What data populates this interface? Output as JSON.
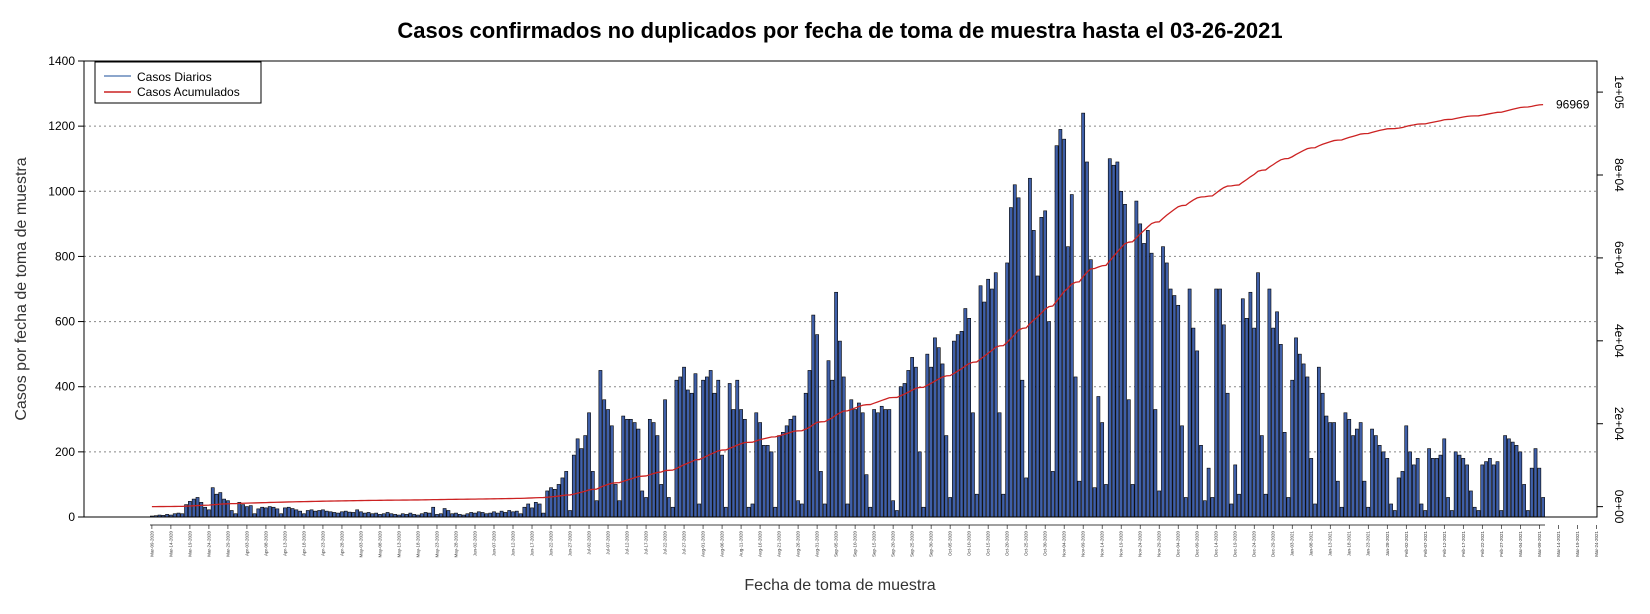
{
  "chart_data": {
    "type": "bar",
    "title": "Casos confirmados no duplicados por fecha de toma de muestra hasta el 03-26-2021",
    "xlabel": "Fecha de toma de muestra",
    "ylabel": "Casos por fecha de toma de muestra",
    "ylim": [
      0,
      1400
    ],
    "y_ticks": [
      "0",
      "200",
      "400",
      "600",
      "800",
      "1000",
      "1200",
      "1400"
    ],
    "y2lim": [
      -2500,
      107500
    ],
    "y2_ticks": [
      "0e+00",
      "2e+04",
      "4e+04",
      "6e+04",
      "8e+04",
      "1e+05"
    ],
    "grid": "horizontal-dotted",
    "legend_position": "top-left",
    "end_label": "96969",
    "series": [
      {
        "name": "Casos Diarios",
        "kind": "bar",
        "color": "#6688bb",
        "fill": "#3f5fa8",
        "start_date": "2020-03-09",
        "values": [
          3,
          4,
          6,
          5,
          8,
          6,
          10,
          12,
          10,
          38,
          48,
          55,
          60,
          45,
          30,
          22,
          90,
          70,
          75,
          55,
          50,
          20,
          10,
          45,
          38,
          32,
          35,
          10,
          25,
          30,
          28,
          32,
          30,
          25,
          10,
          28,
          30,
          26,
          22,
          18,
          10,
          20,
          22,
          18,
          20,
          22,
          18,
          16,
          14,
          12,
          16,
          18,
          15,
          14,
          22,
          16,
          12,
          14,
          10,
          12,
          8,
          10,
          14,
          10,
          8,
          6,
          10,
          8,
          12,
          8,
          6,
          10,
          14,
          12,
          30,
          8,
          10,
          26,
          20,
          10,
          12,
          8,
          6,
          10,
          14,
          12,
          16,
          14,
          10,
          12,
          16,
          12,
          18,
          14,
          20,
          16,
          18,
          10,
          30,
          40,
          28,
          45,
          40,
          12,
          80,
          90,
          85,
          100,
          120,
          140,
          20,
          190,
          240,
          210,
          250,
          320,
          140,
          50,
          450,
          360,
          330,
          280,
          100,
          50,
          310,
          300,
          300,
          290,
          270,
          80,
          60,
          300,
          290,
          250,
          100,
          360,
          60,
          30,
          420,
          430,
          460,
          390,
          380,
          440,
          40,
          420,
          430,
          450,
          380,
          420,
          190,
          30,
          410,
          330,
          420,
          330,
          300,
          30,
          40,
          320,
          290,
          220,
          220,
          200,
          30,
          250,
          260,
          280,
          300,
          310,
          50,
          40,
          380,
          450,
          620,
          560,
          140,
          40,
          480,
          420,
          690,
          540,
          430,
          40,
          360,
          330,
          350,
          320,
          130,
          30,
          330,
          320,
          340,
          330,
          330,
          50,
          20,
          400,
          410,
          450,
          490,
          460,
          200,
          30,
          500,
          460,
          550,
          520,
          470,
          250,
          60,
          540,
          560,
          570,
          640,
          610,
          320,
          70,
          710,
          660,
          730,
          700,
          750,
          320,
          70,
          780,
          950,
          1020,
          980,
          420,
          120,
          1040,
          880,
          740,
          920,
          940,
          600,
          140,
          1140,
          1190,
          1160,
          830,
          990,
          430,
          110,
          1240,
          1090,
          790,
          90,
          370,
          290,
          100,
          1100,
          1080,
          1090,
          1000,
          960,
          360,
          100,
          970,
          900,
          840,
          880,
          810,
          330,
          80,
          830,
          780,
          700,
          680,
          650,
          280,
          60,
          700,
          580,
          510,
          220,
          50,
          150,
          60,
          700,
          700,
          590,
          380,
          40,
          160,
          70,
          670,
          610,
          690,
          580,
          750,
          250,
          70,
          700,
          580,
          630,
          530,
          260,
          60,
          420,
          550,
          500,
          470,
          430,
          180,
          40,
          460,
          380,
          310,
          290,
          290,
          110,
          30,
          320,
          300,
          250,
          270,
          290,
          110,
          30,
          270,
          250,
          220,
          200,
          180,
          40,
          20,
          120,
          140,
          280,
          200,
          160,
          180,
          40,
          20,
          210,
          180,
          180,
          190,
          240,
          60,
          20,
          200,
          190,
          180,
          160,
          80,
          30,
          20,
          160,
          170,
          180,
          160,
          170,
          20,
          250,
          240,
          230,
          220,
          200,
          100,
          20,
          150,
          210,
          150,
          60
        ]
      },
      {
        "name": "Casos Acumulados",
        "kind": "line",
        "color": "#cc2222",
        "axis": "right",
        "final_value": 96969
      }
    ],
    "x_tick_labels": [
      "Mar-09-2020",
      "Mar-14-2020",
      "Mar-19-2020",
      "Mar-24-2020",
      "Mar-29-2020",
      "Apr-03-2020",
      "Apr-08-2020",
      "Apr-13-2020",
      "Apr-18-2020",
      "Apr-23-2020",
      "Apr-28-2020",
      "May-03-2020",
      "May-08-2020",
      "May-13-2020",
      "May-18-2020",
      "May-23-2020",
      "May-28-2020",
      "Jun-02-2020",
      "Jun-07-2020",
      "Jun-12-2020",
      "Jun-17-2020",
      "Jun-22-2020",
      "Jun-27-2020",
      "Jul-02-2020",
      "Jul-07-2020",
      "Jul-12-2020",
      "Jul-17-2020",
      "Jul-22-2020",
      "Jul-27-2020",
      "Aug-01-2020",
      "Aug-06-2020",
      "Aug-11-2020",
      "Aug-16-2020",
      "Aug-21-2020",
      "Aug-26-2020",
      "Aug-31-2020",
      "Sep-05-2020",
      "Sep-10-2020",
      "Sep-15-2020",
      "Sep-20-2020",
      "Sep-25-2020",
      "Sep-30-2020",
      "Oct-05-2020",
      "Oct-10-2020",
      "Oct-15-2020",
      "Oct-20-2020",
      "Oct-25-2020",
      "Oct-30-2020",
      "Nov-04-2020",
      "Nov-09-2020",
      "Nov-14-2020",
      "Nov-19-2020",
      "Nov-24-2020",
      "Nov-29-2020",
      "Dec-04-2020",
      "Dec-09-2020",
      "Dec-14-2020",
      "Dec-19-2020",
      "Dec-24-2020",
      "Dec-29-2020",
      "Jan-03-2021",
      "Jan-08-2021",
      "Jan-13-2021",
      "Jan-18-2021",
      "Jan-23-2021",
      "Jan-28-2021",
      "Feb-02-2021",
      "Feb-07-2021",
      "Feb-12-2021",
      "Feb-17-2021",
      "Feb-22-2021",
      "Feb-27-2021",
      "Mar-04-2021",
      "Mar-09-2021",
      "Mar-14-2021",
      "Mar-19-2021",
      "Mar-24-2021"
    ]
  }
}
